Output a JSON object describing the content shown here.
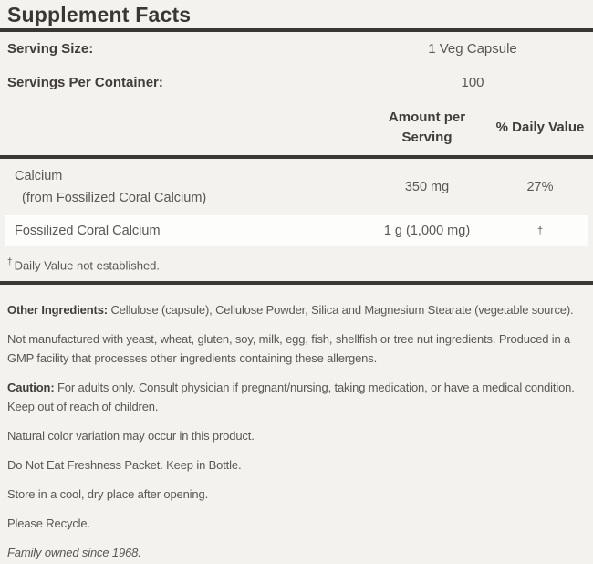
{
  "colors": {
    "background": "#f3f2ef",
    "rule_and_title": "#393734",
    "body_text": "#5a5754",
    "bold_text": "#413e3a",
    "row_highlight": "#fdfdfc"
  },
  "label": {
    "title": "Supplement Facts",
    "serving_rows": [
      {
        "label": "Serving Size:",
        "value": "1 Veg Capsule"
      },
      {
        "label": "Servings Per Container:",
        "value": "100"
      }
    ],
    "columns": {
      "amount_line1": "Amount per",
      "amount_line2": "Serving",
      "daily_value": "% Daily Value"
    },
    "nutrients": [
      {
        "name": "Calcium",
        "detail": "(from Fossilized Coral Calcium)",
        "amount": "350 mg",
        "daily_value": "27%"
      },
      {
        "name": "Fossilized Coral Calcium",
        "detail": "",
        "amount": "1 g (1,000 mg)",
        "daily_value": "†"
      }
    ],
    "footnote": {
      "symbol": "†",
      "text": "Daily Value not established."
    }
  },
  "paragraphs": [
    {
      "bold": "Other Ingredients:",
      "text": " Cellulose (capsule), Cellulose Powder, Silica and Magnesium Stearate (vegetable source)."
    },
    {
      "bold": "",
      "text": "Not manufactured with yeast, wheat, gluten, soy, milk, egg, fish, shellfish or tree nut ingredients. Produced in a GMP facility that processes other ingredients containing these allergens."
    },
    {
      "bold": "Caution:",
      "text": "  For adults only. Consult physician if pregnant/nursing, taking medication, or have a medical condition. Keep out of reach of children."
    },
    {
      "bold": "",
      "text": "Natural color variation may occur in this product."
    },
    {
      "bold": "",
      "text": "Do Not Eat Freshness Packet. Keep in Bottle."
    },
    {
      "bold": "",
      "text": "Store in a cool, dry place after opening."
    },
    {
      "bold": "",
      "text": "Please Recycle."
    },
    {
      "bold": "",
      "text": "Family owned since 1968."
    }
  ]
}
